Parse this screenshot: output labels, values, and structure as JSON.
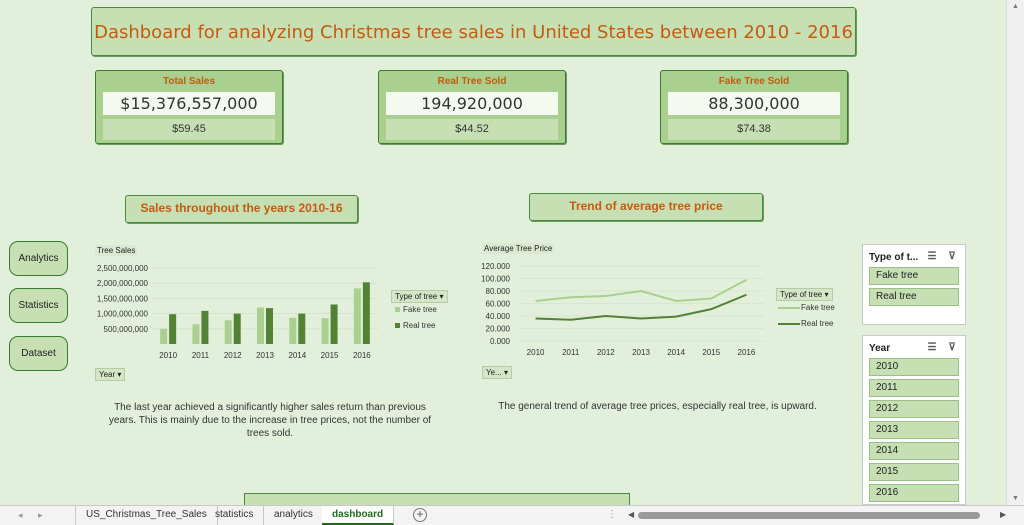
{
  "title": "Dashboard for analyzing Christmas tree sales in United States between 2010 - 2016",
  "kpis": [
    {
      "title": "Total Sales",
      "value": "$15,376,557,000",
      "sub": "$59.45"
    },
    {
      "title": "Real Tree Sold",
      "value": "194,920,000",
      "sub": "$44.52"
    },
    {
      "title": "Fake Tree Sold",
      "value": "88,300,000",
      "sub": "$74.38"
    }
  ],
  "nav": {
    "analytics": "Analytics",
    "statistics": "Statistics",
    "dataset": "Dataset"
  },
  "sales_section": {
    "title": "Sales throughout the years 2010-16",
    "note": "The last year achieved a significantly higher sales return than previous years. This is mainly due to the increase in tree prices, not the number of trees sold."
  },
  "price_section": {
    "title": "Trend of average tree price",
    "note": "The general trend of average tree prices, especially real tree, is upward."
  },
  "colors": {
    "fake": "#a9d08e",
    "real": "#548235",
    "accent": "#c55a11"
  },
  "chart_data": [
    {
      "type": "bar",
      "title": "Tree Sales",
      "field_button": "Year",
      "legend_title": "Type of tree",
      "legend_position": "right",
      "categories": [
        "2010",
        "2011",
        "2012",
        "2013",
        "2014",
        "2015",
        "2016"
      ],
      "y_ticks": [
        "2,500,000,000",
        "2,000,000,000",
        "1,500,000,000",
        "1,000,000,000",
        "500,000,000"
      ],
      "ylim": [
        0,
        2500000000
      ],
      "series": [
        {
          "name": "Fake tree",
          "values": [
            500000000,
            650000000,
            780000000,
            1200000000,
            860000000,
            850000000,
            1830000000
          ]
        },
        {
          "name": "Real tree",
          "values": [
            980000000,
            1090000000,
            1000000000,
            1180000000,
            1000000000,
            1300000000,
            2030000000
          ]
        }
      ]
    },
    {
      "type": "line",
      "title": "Average Tree Price",
      "field_button": "Ye...",
      "legend_title": "Type of tree",
      "legend_position": "right",
      "categories": [
        "2010",
        "2011",
        "2012",
        "2013",
        "2014",
        "2015",
        "2016"
      ],
      "y_ticks": [
        "120.000",
        "100.000",
        "80.000",
        "60.000",
        "40.000",
        "20.000",
        "0.000"
      ],
      "ylim": [
        0,
        120
      ],
      "series": [
        {
          "name": "Fake tree",
          "values": [
            64,
            70,
            72,
            80,
            64,
            68,
            98
          ]
        },
        {
          "name": "Real tree",
          "values": [
            36,
            34,
            40,
            36,
            39,
            51,
            74
          ]
        }
      ]
    }
  ],
  "slicers": {
    "type": {
      "title": "Type of t...",
      "items": [
        "Fake tree",
        "Real tree"
      ]
    },
    "year": {
      "title": "Year",
      "items": [
        "2010",
        "2011",
        "2012",
        "2013",
        "2014",
        "2015",
        "2016"
      ]
    }
  },
  "tabs": [
    "US_Christmas_Tree_Sales",
    "statistics",
    "analytics",
    "dashboard"
  ],
  "active_tab": "dashboard"
}
